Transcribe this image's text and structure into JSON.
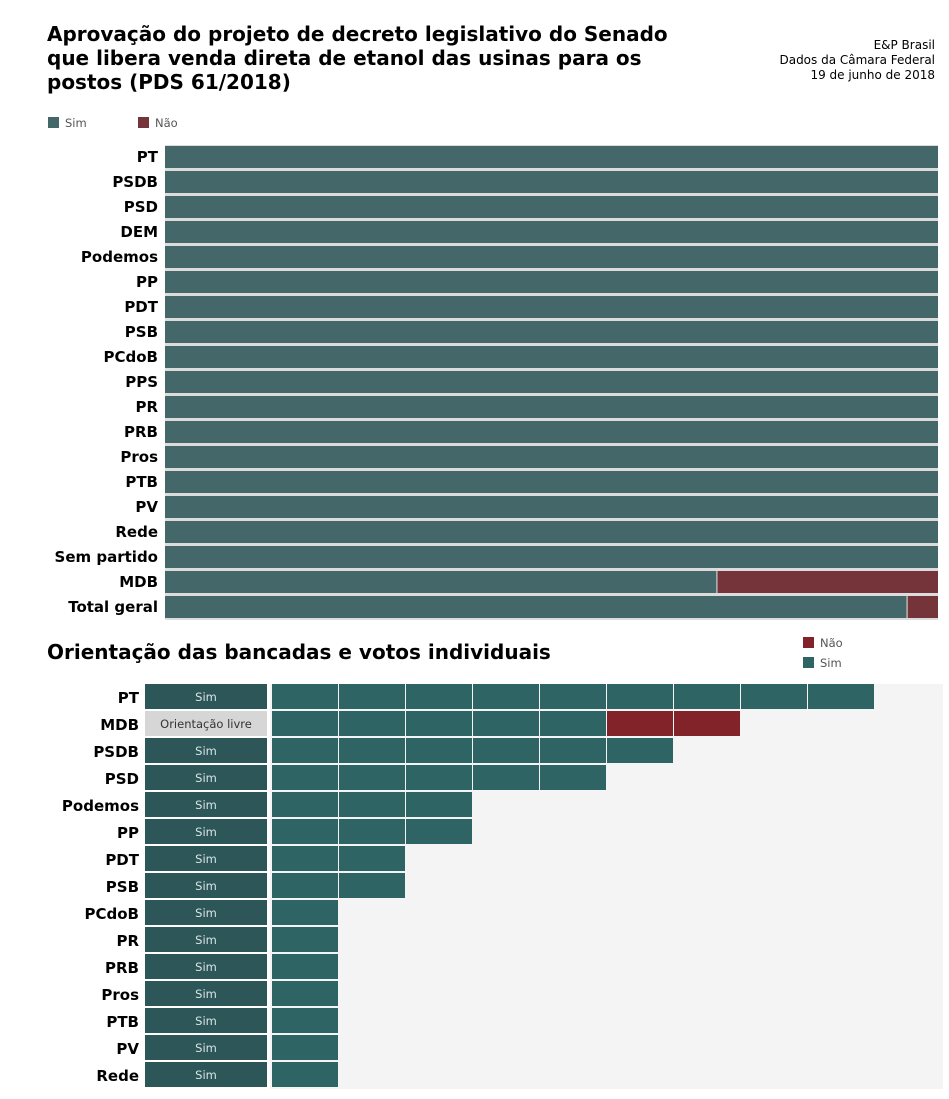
{
  "header": {
    "title": "Aprovação do projeto de decreto legislativo do Senado que libera venda direta de etanol das usinas para os postos (PDS 61/2018)",
    "source_lines": [
      "E&P Brasil",
      "Dados da Câmara Federal",
      "19 de junho de 2018"
    ],
    "subtitle": "Orientação das bancadas e votos individuais"
  },
  "colors": {
    "sim_top": "#44686a",
    "nao_top": "#75343a",
    "sim_bottom": "#2f6465",
    "nao_bottom": "#82232a",
    "orientation_sim": "#2d5658",
    "orientation_free": "#d6d6d6",
    "panel_bg": "#f4f4f4"
  },
  "chart_data": [
    {
      "type": "bar",
      "orientation": "horizontal",
      "stacked": "100%",
      "legend": [
        {
          "label": "Sim",
          "color": "#44686a"
        },
        {
          "label": "Não",
          "color": "#75343a"
        }
      ],
      "legend_position": "top-left",
      "categories": [
        "PT",
        "PSDB",
        "PSD",
        "DEM",
        "Podemos",
        "PP",
        "PDT",
        "PSB",
        "PCdoB",
        "PPS",
        "PR",
        "PRB",
        "Pros",
        "PTB",
        "PV",
        "Rede",
        "Sem partido",
        "MDB",
        "Total geral"
      ],
      "series": [
        {
          "name": "Sim",
          "values": [
            100,
            100,
            100,
            100,
            100,
            100,
            100,
            100,
            100,
            100,
            100,
            100,
            100,
            100,
            100,
            100,
            100,
            71.4,
            96
          ]
        },
        {
          "name": "Não",
          "values": [
            0,
            0,
            0,
            0,
            0,
            0,
            0,
            0,
            0,
            0,
            0,
            0,
            0,
            0,
            0,
            0,
            0,
            28.6,
            4
          ]
        }
      ]
    },
    {
      "type": "table",
      "title": "Orientação das bancadas e votos individuais",
      "legend": [
        {
          "label": "Não",
          "color": "#82232a"
        },
        {
          "label": "Sim",
          "color": "#2f6465"
        }
      ],
      "legend_position": "top-right",
      "rows": [
        {
          "party": "PT",
          "orientation": "Sim",
          "sim": 9,
          "nao": 0
        },
        {
          "party": "MDB",
          "orientation": "Orientação livre",
          "sim": 5,
          "nao": 2
        },
        {
          "party": "PSDB",
          "orientation": "Sim",
          "sim": 6,
          "nao": 0
        },
        {
          "party": "PSD",
          "orientation": "Sim",
          "sim": 5,
          "nao": 0
        },
        {
          "party": "Podemos",
          "orientation": "Sim",
          "sim": 3,
          "nao": 0
        },
        {
          "party": "PP",
          "orientation": "Sim",
          "sim": 3,
          "nao": 0
        },
        {
          "party": "PDT",
          "orientation": "Sim",
          "sim": 2,
          "nao": 0
        },
        {
          "party": "PSB",
          "orientation": "Sim",
          "sim": 2,
          "nao": 0
        },
        {
          "party": "PCdoB",
          "orientation": "Sim",
          "sim": 1,
          "nao": 0
        },
        {
          "party": "PR",
          "orientation": "Sim",
          "sim": 1,
          "nao": 0
        },
        {
          "party": "PRB",
          "orientation": "Sim",
          "sim": 1,
          "nao": 0
        },
        {
          "party": "Pros",
          "orientation": "Sim",
          "sim": 1,
          "nao": 0
        },
        {
          "party": "PTB",
          "orientation": "Sim",
          "sim": 1,
          "nao": 0
        },
        {
          "party": "PV",
          "orientation": "Sim",
          "sim": 1,
          "nao": 0
        },
        {
          "party": "Rede",
          "orientation": "Sim",
          "sim": 1,
          "nao": 0
        }
      ]
    }
  ]
}
